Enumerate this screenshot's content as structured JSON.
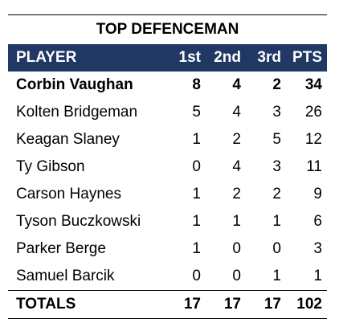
{
  "title": "TOP DEFENCEMAN",
  "header": [
    "PLAYER",
    "1st",
    "2nd",
    "3rd",
    "PTS"
  ],
  "rows": [
    [
      "Corbin Vaughan",
      8,
      4,
      2,
      34
    ],
    [
      "Kolten Bridgeman",
      5,
      4,
      3,
      26
    ],
    [
      "Keagan Slaney",
      1,
      2,
      5,
      12
    ],
    [
      "Ty Gibson",
      0,
      4,
      3,
      11
    ],
    [
      "Carson Haynes",
      1,
      2,
      2,
      9
    ],
    [
      "Tyson Buczkowski",
      1,
      1,
      1,
      6
    ],
    [
      "Parker Berge",
      1,
      0,
      0,
      3
    ],
    [
      "Samuel Barcik",
      0,
      0,
      1,
      1
    ]
  ],
  "totals": [
    "TOTALS",
    17,
    17,
    17,
    102
  ]
}
